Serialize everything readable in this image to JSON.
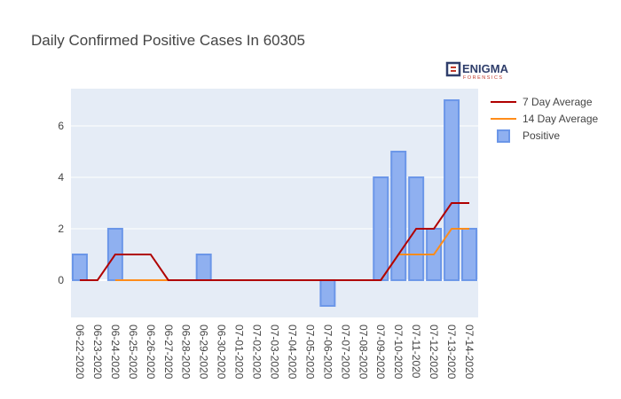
{
  "logo": {
    "name": "ENIGMA",
    "tagline": "FORENSICS",
    "color": "#2f3e6b",
    "accent": "#c0392b"
  },
  "chart_data": {
    "type": "bar",
    "title": "Daily Confirmed Positive Cases In 60305",
    "xlabel": "",
    "ylabel": "",
    "categories": [
      "06-22-2020",
      "06-23-2020",
      "06-24-2020",
      "06-25-2020",
      "06-26-2020",
      "06-27-2020",
      "06-28-2020",
      "06-29-2020",
      "06-30-2020",
      "07-01-2020",
      "07-02-2020",
      "07-03-2020",
      "07-04-2020",
      "07-05-2020",
      "07-06-2020",
      "07-07-2020",
      "07-08-2020",
      "07-09-2020",
      "07-10-2020",
      "07-11-2020",
      "07-12-2020",
      "07-13-2020",
      "07-14-2020"
    ],
    "ylim": [
      -1.45,
      7.45
    ],
    "yticks": [
      0,
      2,
      4,
      6
    ],
    "grid": true,
    "legend_position": "right",
    "series": [
      {
        "name": "Positive",
        "type": "bar",
        "color": "#8fb0f0",
        "edge_color": "#6b96e8",
        "values": [
          1,
          0,
          2,
          0,
          0,
          0,
          0,
          1,
          0,
          0,
          0,
          0,
          0,
          0,
          -1,
          0,
          0,
          4,
          5,
          4,
          2,
          7,
          2
        ]
      },
      {
        "name": "7 Day Average",
        "type": "line",
        "color": "#b00000",
        "values": [
          0,
          0,
          1,
          1,
          1,
          0,
          0,
          0,
          0,
          0,
          0,
          0,
          0,
          0,
          0,
          0,
          0,
          0,
          1,
          2,
          2,
          3,
          3
        ]
      },
      {
        "name": "14 Day Average",
        "type": "line",
        "color": "#ff8c1a",
        "values": [
          null,
          null,
          0,
          0,
          0,
          0,
          0,
          0,
          0,
          0,
          0,
          0,
          0,
          0,
          0,
          0,
          0,
          0,
          1,
          1,
          1,
          2,
          2
        ]
      }
    ]
  }
}
